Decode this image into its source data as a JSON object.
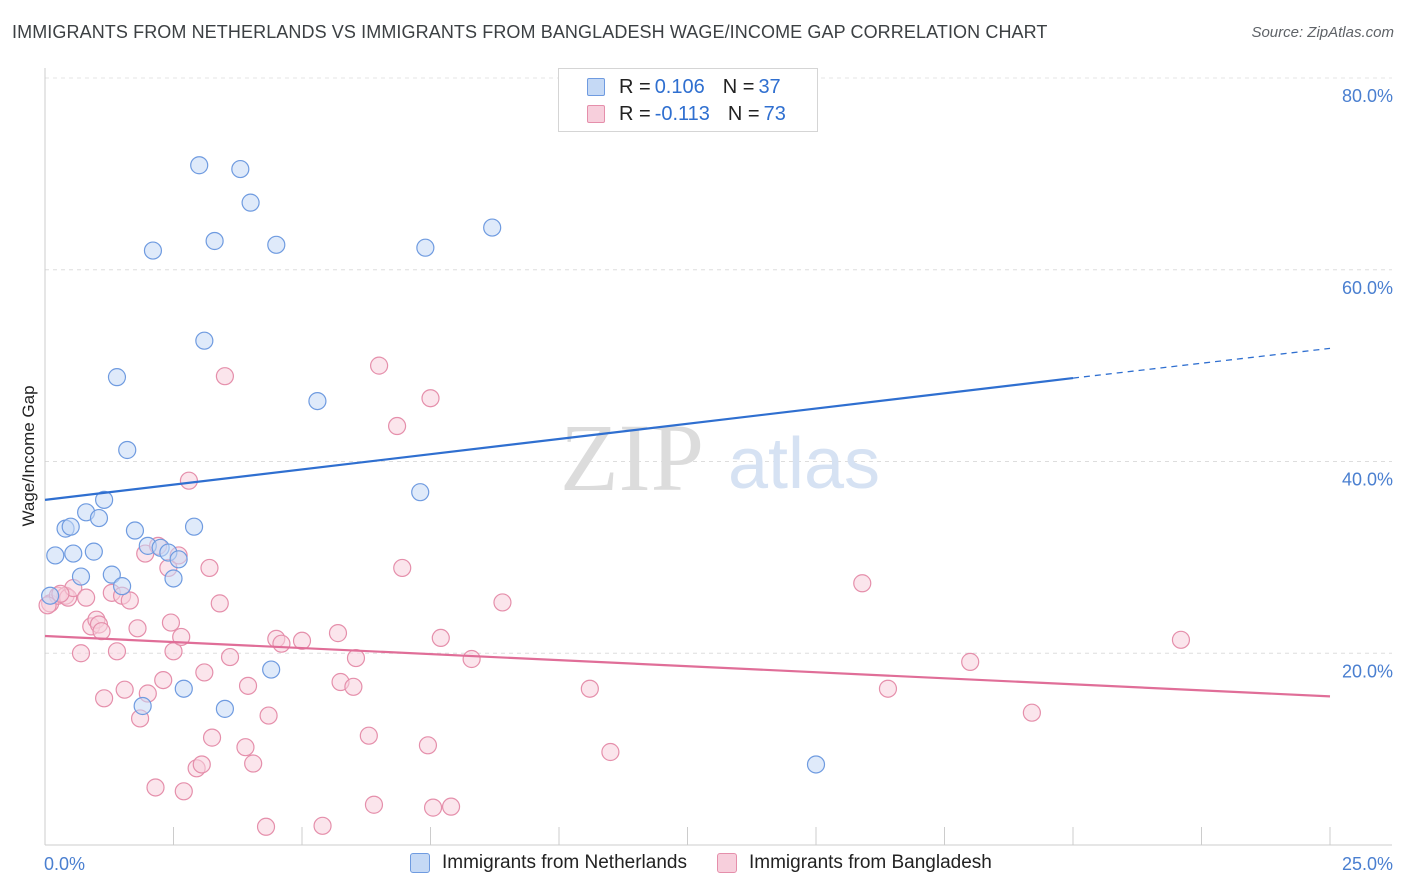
{
  "title": "IMMIGRANTS FROM NETHERLANDS VS IMMIGRANTS FROM BANGLADESH WAGE/INCOME GAP CORRELATION CHART",
  "source": "Source: ZipAtlas.com",
  "watermark": {
    "zip": "ZIP",
    "atlas": "atlas"
  },
  "legend": {
    "r_label": "R =",
    "n_label": "N =",
    "rows": [
      {
        "r": "0.106",
        "n": "37",
        "color": "#a8c6ef",
        "border": "#6f9be0"
      },
      {
        "r": "-0.113",
        "n": "73",
        "color": "#f7bfd0",
        "border": "#e58fab"
      }
    ]
  },
  "chart_data": {
    "type": "scatter",
    "title": "IMMIGRANTS FROM NETHERLANDS VS IMMIGRANTS FROM BANGLADESH WAGE/INCOME GAP CORRELATION CHART",
    "xlabel": "",
    "ylabel": "Wage/Income Gap",
    "xlim": [
      0,
      25
    ],
    "ylim": [
      0,
      80
    ],
    "x_tick_labels": [
      "0.0%",
      "25.0%"
    ],
    "y_ticks": [
      20,
      40,
      60,
      80
    ],
    "y_tick_labels": [
      "20.0%",
      "40.0%",
      "60.0%",
      "80.0%"
    ],
    "grid": true,
    "legend_position": "top-center",
    "series": [
      {
        "name": "Immigrants from Netherlands",
        "color": "#6f9be0",
        "fill": "#c5d9f5",
        "trend_color": "#2f6fd0",
        "trend": {
          "x0": 0,
          "y0": 36.0,
          "x1": 20,
          "y1": 48.7,
          "dash_x1": 25,
          "dash_y1": 51.8
        },
        "points": [
          [
            0.1,
            26.0
          ],
          [
            0.2,
            30.2
          ],
          [
            0.4,
            33.0
          ],
          [
            0.5,
            33.2
          ],
          [
            0.55,
            30.4
          ],
          [
            0.7,
            28.0
          ],
          [
            0.8,
            34.7
          ],
          [
            0.95,
            30.6
          ],
          [
            1.05,
            34.1
          ],
          [
            1.15,
            36.0
          ],
          [
            1.3,
            28.2
          ],
          [
            1.4,
            48.8
          ],
          [
            1.5,
            27.0
          ],
          [
            1.6,
            41.2
          ],
          [
            1.75,
            32.8
          ],
          [
            1.9,
            14.5
          ],
          [
            2.0,
            31.2
          ],
          [
            2.1,
            62.0
          ],
          [
            2.25,
            31.0
          ],
          [
            2.4,
            30.5
          ],
          [
            2.5,
            27.8
          ],
          [
            2.6,
            29.8
          ],
          [
            2.7,
            16.3
          ],
          [
            2.9,
            33.2
          ],
          [
            3.0,
            70.9
          ],
          [
            3.1,
            52.6
          ],
          [
            3.3,
            63.0
          ],
          [
            3.5,
            14.2
          ],
          [
            3.8,
            70.5
          ],
          [
            4.0,
            67.0
          ],
          [
            4.4,
            18.3
          ],
          [
            4.5,
            62.6
          ],
          [
            5.3,
            46.3
          ],
          [
            7.3,
            36.8
          ],
          [
            7.4,
            62.3
          ],
          [
            8.7,
            64.4
          ],
          [
            15.0,
            8.4
          ]
        ]
      },
      {
        "name": "Immigrants from Bangladesh",
        "color": "#e58fab",
        "fill": "#f7cfdc",
        "trend_color": "#e06e98",
        "trend": {
          "x0": 0,
          "y0": 21.8,
          "x1": 25,
          "y1": 15.5
        },
        "points": [
          [
            0.1,
            25.2
          ],
          [
            0.25,
            26.0
          ],
          [
            0.4,
            26.0
          ],
          [
            0.45,
            25.8
          ],
          [
            0.55,
            26.8
          ],
          [
            0.7,
            20.0
          ],
          [
            0.8,
            25.8
          ],
          [
            0.9,
            22.8
          ],
          [
            1.0,
            23.5
          ],
          [
            1.05,
            23.0
          ],
          [
            1.1,
            22.3
          ],
          [
            1.15,
            15.3
          ],
          [
            1.3,
            26.3
          ],
          [
            1.4,
            20.2
          ],
          [
            1.5,
            26.0
          ],
          [
            1.55,
            16.2
          ],
          [
            1.65,
            25.5
          ],
          [
            1.8,
            22.6
          ],
          [
            1.85,
            13.2
          ],
          [
            1.95,
            30.4
          ],
          [
            2.0,
            15.8
          ],
          [
            2.15,
            6.0
          ],
          [
            2.2,
            31.2
          ],
          [
            2.3,
            17.2
          ],
          [
            2.4,
            28.9
          ],
          [
            2.45,
            23.2
          ],
          [
            2.5,
            20.2
          ],
          [
            2.6,
            30.2
          ],
          [
            2.65,
            21.7
          ],
          [
            2.7,
            5.6
          ],
          [
            2.8,
            38.0
          ],
          [
            2.95,
            8.0
          ],
          [
            3.05,
            8.4
          ],
          [
            3.1,
            18.0
          ],
          [
            3.2,
            28.9
          ],
          [
            3.25,
            11.2
          ],
          [
            3.4,
            25.2
          ],
          [
            3.5,
            48.9
          ],
          [
            3.6,
            19.6
          ],
          [
            3.9,
            10.2
          ],
          [
            3.95,
            16.6
          ],
          [
            4.05,
            8.5
          ],
          [
            4.3,
            1.9
          ],
          [
            4.35,
            13.5
          ],
          [
            4.5,
            21.5
          ],
          [
            4.6,
            21.0
          ],
          [
            5.0,
            21.3
          ],
          [
            5.4,
            2.0
          ],
          [
            5.7,
            22.1
          ],
          [
            5.75,
            17.0
          ],
          [
            6.0,
            16.5
          ],
          [
            6.05,
            19.5
          ],
          [
            6.3,
            11.4
          ],
          [
            6.4,
            4.2
          ],
          [
            6.5,
            50.0
          ],
          [
            6.85,
            43.7
          ],
          [
            6.95,
            28.9
          ],
          [
            7.45,
            10.4
          ],
          [
            7.5,
            46.6
          ],
          [
            7.55,
            3.9
          ],
          [
            7.7,
            21.6
          ],
          [
            7.9,
            4.0
          ],
          [
            8.3,
            19.4
          ],
          [
            8.9,
            25.3
          ],
          [
            10.6,
            16.3
          ],
          [
            11.0,
            9.7
          ],
          [
            15.9,
            27.3
          ],
          [
            16.4,
            16.3
          ],
          [
            18.0,
            19.1
          ],
          [
            19.2,
            13.8
          ],
          [
            22.1,
            21.4
          ],
          [
            0.05,
            25.0
          ],
          [
            0.3,
            26.2
          ]
        ]
      }
    ]
  }
}
